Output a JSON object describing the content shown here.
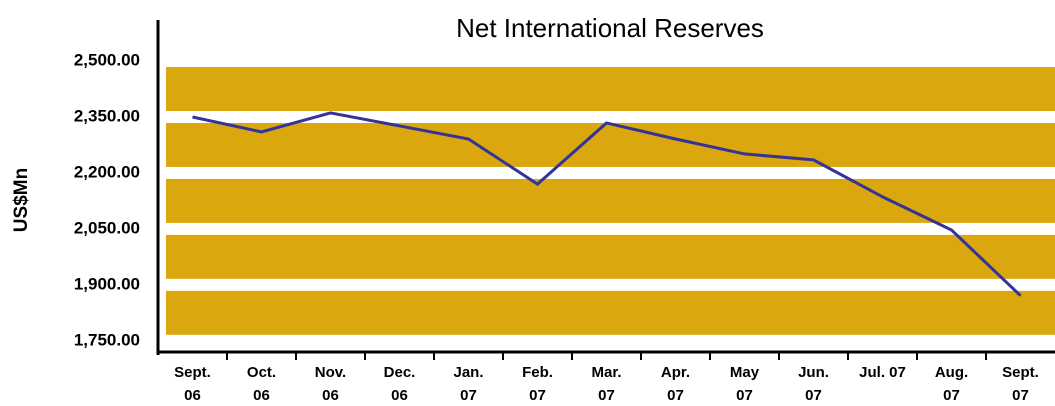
{
  "chart_data": {
    "type": "line",
    "title": "Net International Reserves",
    "y_label": "US$Mn",
    "categories": [
      "Sept. 06",
      "Oct. 06",
      "Nov. 06",
      "Dec. 06",
      "Jan. 07",
      "Feb. 07",
      "Mar. 07",
      "Apr. 07",
      "May 07",
      "Jun. 07",
      "Jul. 07",
      "Aug. 07",
      "Sept. 07"
    ],
    "series": [
      {
        "name": "Net International Reserves",
        "color": "#333399",
        "values": [
          2350,
          2310,
          2361,
          2326,
          2291,
          2170,
          2334,
          2291,
          2251,
          2235,
          2136,
          2047,
          1871
        ]
      }
    ],
    "band_color": "#dba70e",
    "ylim": [
      1720,
      2610
    ],
    "yticks": [
      {
        "value": 1750,
        "label": "1,750.00"
      },
      {
        "value": 1900,
        "label": "1,900.00"
      },
      {
        "value": 2050,
        "label": "2,050.00"
      },
      {
        "value": 2200,
        "label": "2,200.00"
      },
      {
        "value": 2350,
        "label": "2,350.00"
      },
      {
        "value": 2500,
        "label": "2,500.00"
      }
    ]
  }
}
